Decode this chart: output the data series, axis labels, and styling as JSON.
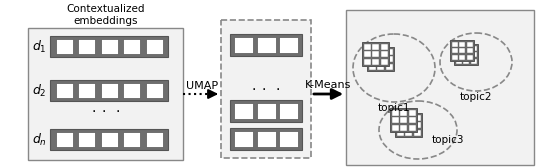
{
  "background_color": "#ffffff",
  "dark_gray": "#6e6e6e",
  "light_gray": "#d8d8d8",
  "border_color": "#555555",
  "dashed_color": "#888888",
  "text_color": "#000000",
  "label_umap": "UMAP",
  "label_kmeans": "K-Means",
  "label_topic1": "topic1",
  "label_topic2": "topic2",
  "label_topic3": "topic3",
  "title_text": "Contextualized\nembeddings",
  "box_fill": "#f2f2f2"
}
